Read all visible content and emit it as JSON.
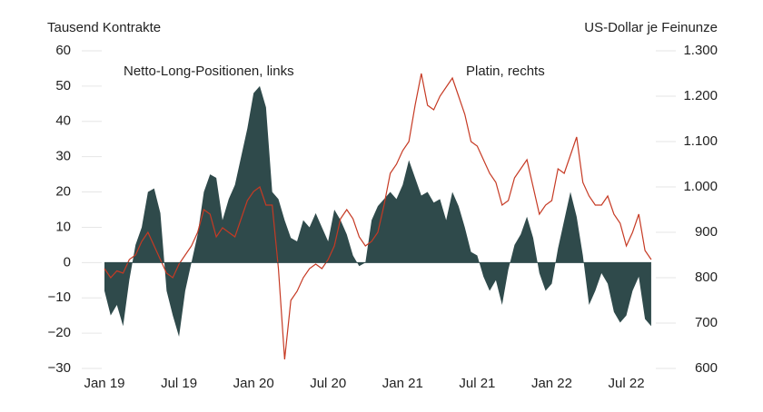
{
  "chart_data": {
    "type": "area-line",
    "y_label": "Tausend Kontrakte",
    "y2_label": "US-Dollar je Feinunze",
    "annotations": [
      "Netto-Long-Positionen, links",
      "Platin, rechts"
    ],
    "categories": [
      "Jan 19",
      null,
      null,
      null,
      null,
      null,
      null,
      null,
      null,
      null,
      null,
      null,
      "Jul 19",
      null,
      null,
      null,
      null,
      null,
      null,
      null,
      null,
      null,
      null,
      null,
      "Jan 20",
      null,
      null,
      null,
      null,
      null,
      null,
      null,
      null,
      null,
      null,
      null,
      "Jul 20",
      null,
      null,
      null,
      null,
      null,
      null,
      null,
      null,
      null,
      null,
      null,
      "Jan 21",
      null,
      null,
      null,
      null,
      null,
      null,
      null,
      null,
      null,
      null,
      null,
      "Jul 21",
      null,
      null,
      null,
      null,
      null,
      null,
      null,
      null,
      null,
      null,
      null,
      "Jan 22",
      null,
      null,
      null,
      null,
      null,
      null,
      null,
      null,
      null,
      null,
      null,
      "Jul 22",
      null,
      null,
      null,
      null
    ],
    "series": [
      {
        "name": "Netto-Long-Positionen, links",
        "type": "area",
        "color": "#2f4a4b",
        "values": [
          -8,
          -15,
          -12,
          -18,
          -5,
          5,
          10,
          20,
          21,
          14,
          -8,
          -15,
          -21,
          -8,
          0,
          8,
          20,
          25,
          24,
          12,
          18,
          22,
          30,
          38,
          48,
          50,
          44,
          20,
          18,
          12,
          7,
          6,
          12,
          10,
          14,
          10,
          6,
          15,
          12,
          8,
          2,
          -1,
          0,
          12,
          16,
          18,
          20,
          18,
          22,
          29,
          24,
          19,
          20,
          17,
          18,
          12,
          20,
          16,
          10,
          3,
          2,
          -4,
          -8,
          -5,
          -12,
          -2,
          5,
          8,
          13,
          7,
          -3,
          -8,
          -6,
          4,
          12,
          20,
          13,
          2,
          -12,
          -8,
          -3,
          -6,
          -14,
          -17,
          -15,
          -8,
          -4,
          -16,
          -18
        ]
      },
      {
        "name": "Platin, rechts",
        "type": "line",
        "axis": "y2",
        "color": "#c63a24",
        "values": [
          820,
          800,
          815,
          810,
          840,
          850,
          880,
          900,
          870,
          840,
          810,
          800,
          830,
          850,
          870,
          900,
          950,
          940,
          890,
          910,
          900,
          890,
          930,
          970,
          990,
          1000,
          960,
          960,
          820,
          620,
          750,
          770,
          800,
          820,
          830,
          820,
          840,
          870,
          930,
          950,
          930,
          890,
          870,
          880,
          900,
          960,
          1030,
          1050,
          1080,
          1100,
          1180,
          1250,
          1180,
          1170,
          1200,
          1220,
          1240,
          1200,
          1160,
          1100,
          1090,
          1060,
          1030,
          1010,
          960,
          970,
          1020,
          1040,
          1060,
          1000,
          940,
          960,
          970,
          1040,
          1030,
          1070,
          1110,
          1010,
          980,
          960,
          960,
          980,
          940,
          920,
          870,
          900,
          940,
          860,
          840
        ]
      }
    ],
    "ylim": [
      -30,
      60
    ],
    "yticks": [
      {
        "value": -30,
        "label": "−30"
      },
      {
        "value": -20,
        "label": "−20"
      },
      {
        "value": -10,
        "label": "−10"
      },
      0,
      10,
      20,
      30,
      40,
      50,
      60
    ],
    "y2lim": [
      600,
      1300
    ],
    "y2ticks": [
      600,
      700,
      800,
      900,
      {
        "value": 1000,
        "label": "1.000"
      },
      {
        "value": 1100,
        "label": "1.100"
      },
      {
        "value": 1200,
        "label": "1.200"
      },
      {
        "value": 1300,
        "label": "1.300"
      }
    ],
    "grid": true
  }
}
